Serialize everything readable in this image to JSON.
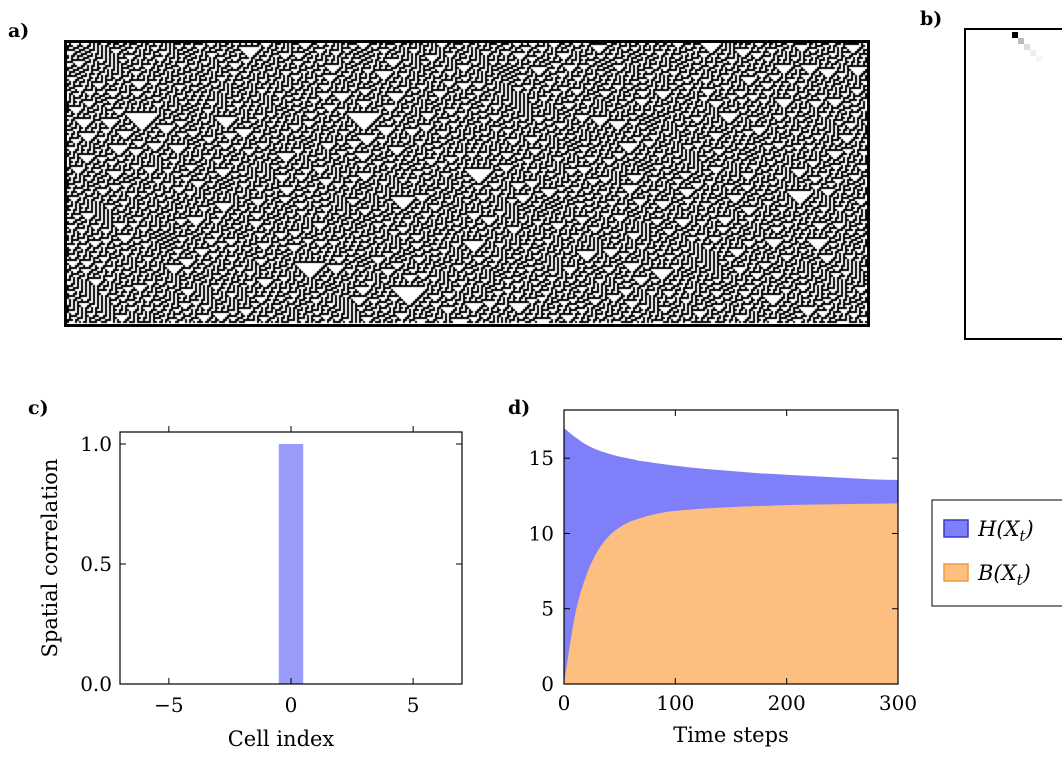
{
  "panels": {
    "a": "a)",
    "b": "b)",
    "c": "c)",
    "d": "d)"
  },
  "chart_data": [
    {
      "panel": "a",
      "type": "heatmap",
      "description_values": "binary cellular automaton space-time pattern (black/white cells)",
      "colors": [
        "#000000",
        "#ffffff"
      ]
    },
    {
      "panel": "c",
      "type": "bar",
      "categories": [
        0
      ],
      "values": [
        1.0
      ],
      "xlabel": "Cell index",
      "ylabel": "Spatial correlation",
      "xlim": [
        -7,
        7
      ],
      "ylim": [
        0,
        1.05
      ],
      "xticks": [
        "−5",
        "0",
        "5"
      ],
      "xtick_values": [
        -5,
        0,
        5
      ],
      "yticks": [
        "0.0",
        "0.5",
        "1.0"
      ],
      "ytick_values": [
        0,
        0.5,
        1.0
      ],
      "bar_color": "#9a9cfa"
    },
    {
      "panel": "d",
      "type": "area",
      "xlabel": "Time steps",
      "ylabel": "",
      "xlim": [
        0,
        300
      ],
      "ylim": [
        0,
        18.2
      ],
      "xticks": [
        "0",
        "100",
        "200",
        "300"
      ],
      "xtick_values": [
        0,
        100,
        200,
        300
      ],
      "yticks": [
        "0",
        "5",
        "10",
        "15"
      ],
      "ytick_values": [
        0,
        5,
        10,
        15
      ],
      "x": [
        0,
        10,
        20,
        30,
        40,
        50,
        60,
        70,
        80,
        90,
        100,
        125,
        150,
        175,
        200,
        225,
        250,
        275,
        300
      ],
      "series": [
        {
          "name": "H(X_t)",
          "color": "#7f7ffa",
          "edge": "#3a3ad0",
          "values": [
            17.0,
            16.4,
            15.9,
            15.55,
            15.3,
            15.1,
            14.95,
            14.8,
            14.7,
            14.6,
            14.5,
            14.3,
            14.15,
            14.0,
            13.9,
            13.8,
            13.7,
            13.6,
            13.55
          ]
        },
        {
          "name": "B(X_t)",
          "color": "#fdbf80",
          "edge": "#f39a3c",
          "values": [
            0.0,
            4.6,
            7.2,
            8.8,
            9.8,
            10.4,
            10.8,
            11.05,
            11.25,
            11.4,
            11.5,
            11.65,
            11.75,
            11.82,
            11.88,
            11.92,
            11.95,
            11.97,
            12.0
          ]
        }
      ],
      "legend": {
        "placement": "right",
        "entries": [
          "H(X",
          "t",
          ")",
          "B(X",
          "t",
          ")"
        ]
      }
    }
  ]
}
